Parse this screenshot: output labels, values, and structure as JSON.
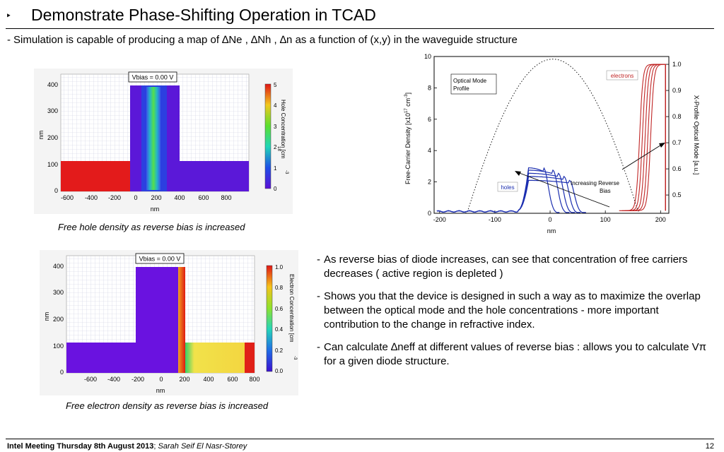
{
  "slide": {
    "title": "Demonstrate Phase-Shifting Operation in TCAD",
    "title_bullet": "‣",
    "subtitle_dash": "-",
    "subtitle": "Simulation is capable of producing a map of ∆Ne , ∆Nh , ∆n as a function of (x,y) in the waveguide structure"
  },
  "hole_map": {
    "vbias_label": "Vbias = 0.00 V",
    "x_ticks": [
      "-600",
      "-400",
      "-200",
      "0",
      "200",
      "400",
      "600",
      "800"
    ],
    "y_ticks": [
      "0",
      "100",
      "200",
      "300",
      "400"
    ],
    "x_label": "nm",
    "y_label": "nm",
    "colorbar_ticks": [
      "0",
      "1",
      "2",
      "3",
      "4",
      "5"
    ],
    "colorbar_label": "Hole Concentration [cm",
    "colorbar_exp": "-3",
    "colorbar_exp2": "18",
    "caption": "Free hole density as reverse bias is increased"
  },
  "electron_map": {
    "vbias_label": "Vbias = 0.00 V",
    "x_ticks": [
      "-600",
      "-400",
      "-200",
      "0",
      "200",
      "400",
      "600",
      "800"
    ],
    "y_ticks": [
      "0",
      "100",
      "200",
      "300",
      "400"
    ],
    "x_label": "nm",
    "y_label": "nm",
    "colorbar_ticks": [
      "0.0",
      "0.2",
      "0.4",
      "0.6",
      "0.8",
      "1.0"
    ],
    "colorbar_label": "Electron Concentration [cm",
    "colorbar_exp": "-3",
    "caption": "Free electron density as reverse bias is increased"
  },
  "chart_data": {
    "type": "line",
    "x_ticks": [
      "-200",
      "-100",
      "0",
      "100",
      "200"
    ],
    "y_ticks": [
      "0",
      "2",
      "4",
      "6",
      "8",
      "10"
    ],
    "y2_ticks": [
      "0.5",
      "0.6",
      "0.7",
      "0.8",
      "0.9",
      "1.0"
    ],
    "xlabel": "nm",
    "ylabel": "Free-Carrier Density [x10",
    "ylabel_exp1": "17",
    "ylabel_unit": "cm",
    "ylabel_exp2": "-3",
    "y2label": "X-Profile Optical Mode [a.u.]",
    "xlim": [
      -210,
      215
    ],
    "ylim": [
      0,
      10
    ],
    "y2lim": [
      0.43,
      1.03
    ],
    "legend_optical": "Optical Mode Profile",
    "legend_optical_lines": [
      "Optical Mode",
      "Profile"
    ],
    "label_holes": "holes",
    "label_electrons": "electrons",
    "annotation": "Increasing  Reverse Bias",
    "annotation_lines": [
      "Increasing  Reverse",
      "Bias"
    ],
    "colors": {
      "holes": "#1c2fb0",
      "electrons": "#c02626",
      "optical": "#000000"
    },
    "series": [
      {
        "name": "holes",
        "edges": [
          -12,
          5,
          15,
          25,
          35
        ],
        "peaks": [
          2.9,
          2.75,
          2.55,
          2.35,
          2.1
        ]
      },
      {
        "name": "electrons",
        "edges": [
          170,
          165,
          160,
          155,
          150
        ]
      },
      {
        "name": "Optical Mode Profile",
        "center": 5,
        "ymax": 1.02
      }
    ]
  },
  "bullets": [
    {
      "dash": "-",
      "text": "As reverse bias of diode increases, can see that concentration of free carriers decreases ( active region is depleted )"
    },
    {
      "dash": "-",
      "text": "Shows you that the device is designed in such a way as to maximize the overlap between the optical mode and the hole concentrations - more important contribution to the change in refractive index."
    },
    {
      "dash": "-",
      "text": "Can calculate ∆neff at different values of reverse bias : allows you to calculate Vπ for a given diode structure."
    }
  ],
  "footer": {
    "meeting": "Intel Meeting Thursday 8th August 2013",
    "sep": ";",
    "author": "Sarah Seif El Nasr-Storey",
    "page": "12"
  }
}
